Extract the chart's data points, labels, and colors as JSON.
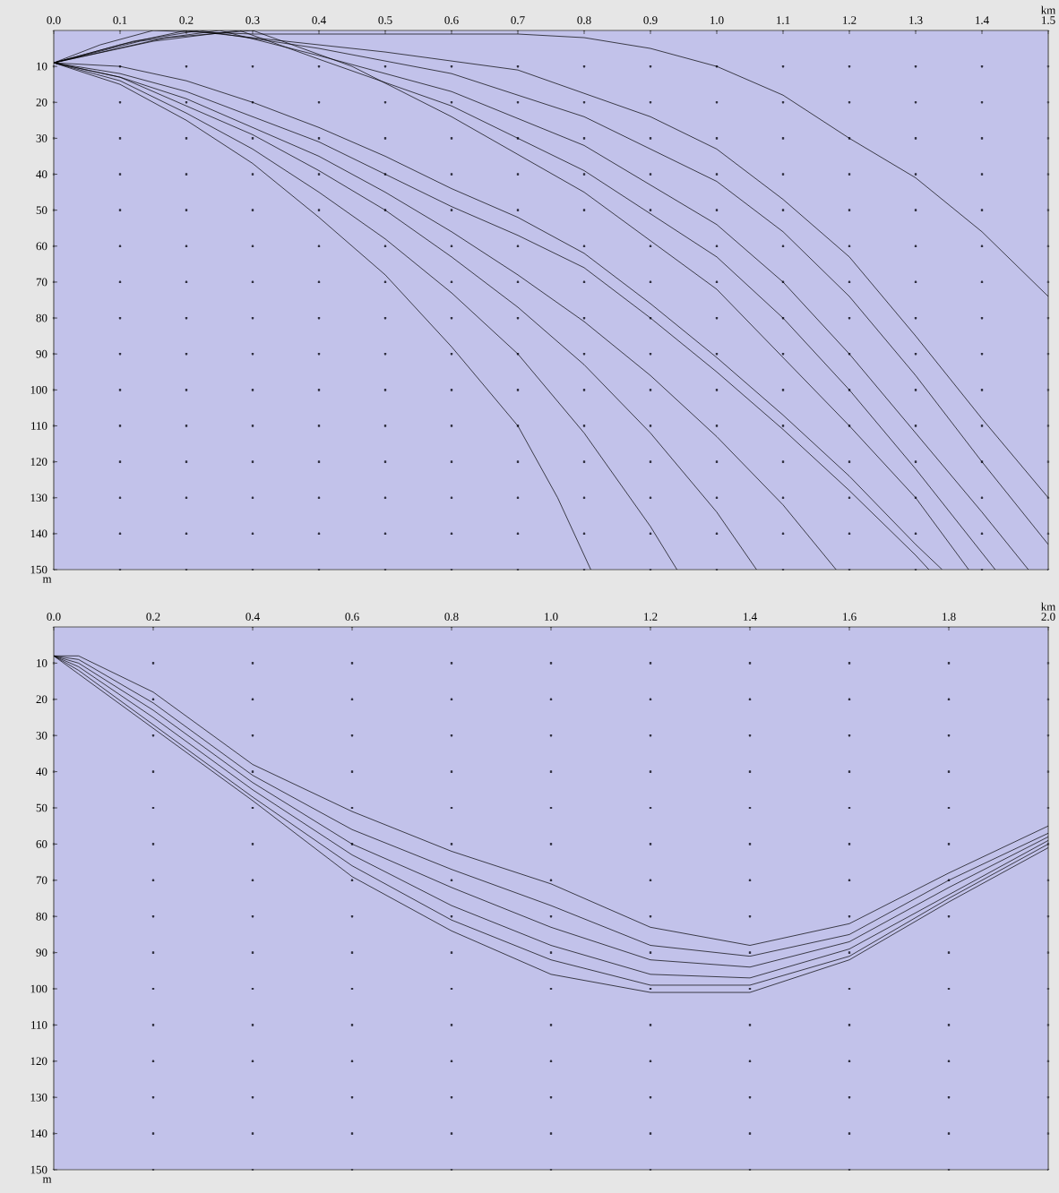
{
  "chart_data": [
    {
      "type": "line",
      "xlabel": "km",
      "ylabel": "m",
      "xlim": [
        0,
        1.5
      ],
      "ylim": [
        150,
        0
      ],
      "xticks": [
        {
          "value": 0,
          "label": "0.0"
        },
        0.1,
        0.2,
        0.3,
        0.4,
        0.5,
        0.6,
        0.7,
        0.8,
        0.9,
        {
          "value": 1,
          "label": "1.0"
        },
        1.1,
        1.2,
        1.3,
        1.4,
        1.5
      ],
      "yticks": [
        10,
        20,
        30,
        40,
        50,
        60,
        70,
        80,
        90,
        100,
        110,
        120,
        130,
        140,
        150
      ],
      "grid": true,
      "series": [
        {
          "color": "#000000",
          "x": [
            0,
            0.07,
            0.15,
            0.3,
            0.5,
            0.7,
            0.8,
            0.9,
            1.0,
            1.1,
            1.2,
            1.3,
            1.4,
            1.5
          ],
          "values": [
            9,
            4,
            0,
            1,
            1,
            1,
            2,
            5,
            10,
            18,
            30,
            41,
            56,
            74
          ]
        },
        {
          "color": "#000000",
          "x": [
            0,
            0.1,
            0.2,
            0.3,
            0.5,
            0.7,
            0.9,
            1.0,
            1.1,
            1.2,
            1.3,
            1.4,
            1.5
          ],
          "values": [
            9,
            4,
            0,
            2,
            6,
            11,
            24,
            33,
            47,
            63,
            85,
            108,
            130
          ]
        },
        {
          "color": "#000000",
          "x": [
            0,
            0.12,
            0.22,
            0.4,
            0.6,
            0.8,
            1.0,
            1.1,
            1.2,
            1.3,
            1.4,
            1.5
          ],
          "values": [
            9,
            3,
            0,
            5,
            12,
            24,
            42,
            56,
            74,
            96,
            120,
            143
          ]
        },
        {
          "color": "#000000",
          "x": [
            0,
            0.13,
            0.25,
            0.4,
            0.6,
            0.8,
            1.0,
            1.1,
            1.2,
            1.3,
            1.4,
            1.47
          ],
          "values": [
            9,
            3,
            0,
            7,
            17,
            32,
            54,
            70,
            90,
            112,
            134,
            150
          ]
        },
        {
          "color": "#000000",
          "x": [
            0,
            0.15,
            0.28,
            0.4,
            0.6,
            0.8,
            1.0,
            1.1,
            1.2,
            1.3,
            1.42
          ],
          "values": [
            9,
            3,
            0,
            8,
            21,
            39,
            63,
            80,
            100,
            122,
            150
          ]
        },
        {
          "color": "#000000",
          "x": [
            0,
            0.17,
            0.3,
            0.45,
            0.6,
            0.8,
            1.0,
            1.2,
            1.3,
            1.38
          ],
          "values": [
            9,
            2,
            0,
            10,
            24,
            45,
            72,
            110,
            130,
            150
          ]
        },
        {
          "color": "#000000",
          "x": [
            0,
            0.1,
            0.2,
            0.3,
            0.4,
            0.5,
            0.6,
            0.7,
            0.76,
            0.81
          ],
          "values": [
            9,
            15,
            25,
            37,
            52,
            68,
            88,
            110,
            130,
            150
          ]
        },
        {
          "color": "#000000",
          "x": [
            0,
            0.1,
            0.2,
            0.3,
            0.4,
            0.5,
            0.6,
            0.7,
            0.8,
            0.9,
            0.94
          ],
          "values": [
            9,
            14,
            23,
            33,
            45,
            58,
            73,
            90,
            112,
            138,
            150
          ]
        },
        {
          "color": "#000000",
          "x": [
            0,
            0.1,
            0.2,
            0.3,
            0.4,
            0.5,
            0.6,
            0.7,
            0.8,
            0.9,
            1.0,
            1.06
          ],
          "values": [
            9,
            13,
            21,
            29,
            39,
            50,
            63,
            77,
            93,
            112,
            134,
            150
          ]
        },
        {
          "color": "#000000",
          "x": [
            0,
            0.1,
            0.2,
            0.3,
            0.4,
            0.5,
            0.6,
            0.7,
            0.8,
            0.9,
            1.0,
            1.1,
            1.18
          ],
          "values": [
            9,
            13,
            19,
            27,
            35,
            45,
            56,
            68,
            81,
            96,
            113,
            132,
            150
          ]
        },
        {
          "color": "#000000",
          "x": [
            0,
            0.1,
            0.2,
            0.3,
            0.4,
            0.5,
            0.6,
            0.7,
            0.8,
            0.9,
            1.0,
            1.1,
            1.2,
            1.3,
            1.32
          ],
          "values": [
            9,
            12,
            17,
            24,
            31,
            40,
            49,
            57,
            66,
            80,
            95,
            111,
            128,
            146,
            150
          ]
        },
        {
          "color": "#000000",
          "x": [
            0,
            0.1,
            0.2,
            0.3,
            0.4,
            0.5,
            0.6,
            0.7,
            0.8,
            0.9,
            1.0,
            1.1,
            1.2,
            1.3,
            1.34
          ],
          "values": [
            9,
            10,
            14,
            20,
            27,
            35,
            44,
            52,
            62,
            76,
            91,
            107,
            124,
            143,
            150
          ]
        }
      ]
    },
    {
      "type": "line",
      "xlabel": "km",
      "ylabel": "m",
      "xlim": [
        0,
        2
      ],
      "ylim": [
        150,
        0
      ],
      "xticks": [
        {
          "value": 0,
          "label": "0.0"
        },
        0.2,
        0.4,
        0.6,
        0.8,
        {
          "value": 1,
          "label": "1.0"
        },
        1.2,
        1.4,
        1.6,
        1.8,
        {
          "value": 2,
          "label": "2.0"
        }
      ],
      "yticks": [
        10,
        20,
        30,
        40,
        50,
        60,
        70,
        80,
        90,
        100,
        110,
        120,
        130,
        140,
        150
      ],
      "grid": true,
      "series": [
        {
          "color": "#000000",
          "x": [
            0,
            0.05,
            0.2,
            0.4,
            0.6,
            0.8,
            1.0,
            1.2,
            1.4,
            1.6,
            1.8,
            2.0
          ],
          "values": [
            8,
            8,
            18,
            38,
            51,
            62,
            71,
            83,
            88,
            82,
            68,
            55
          ]
        },
        {
          "color": "#000000",
          "x": [
            0,
            0.05,
            0.2,
            0.4,
            0.6,
            0.8,
            1.0,
            1.2,
            1.4,
            1.6,
            1.8,
            2.0
          ],
          "values": [
            8,
            9,
            21,
            41,
            56,
            67,
            77,
            88,
            91,
            85,
            70,
            57
          ]
        },
        {
          "color": "#000000",
          "x": [
            0,
            0.05,
            0.2,
            0.4,
            0.6,
            0.8,
            1.0,
            1.2,
            1.4,
            1.6,
            1.8,
            2.0
          ],
          "values": [
            8,
            10,
            23,
            43,
            60,
            72,
            83,
            92,
            94,
            87,
            72,
            58
          ]
        },
        {
          "color": "#000000",
          "x": [
            0,
            0.05,
            0.2,
            0.4,
            0.6,
            0.8,
            1.0,
            1.2,
            1.4,
            1.6,
            1.8,
            2.0
          ],
          "values": [
            8,
            11,
            25,
            45,
            63,
            77,
            88,
            96,
            97,
            89,
            74,
            59
          ]
        },
        {
          "color": "#000000",
          "x": [
            0,
            0.05,
            0.2,
            0.4,
            0.6,
            0.8,
            1.0,
            1.2,
            1.4,
            1.6,
            1.8,
            2.0
          ],
          "values": [
            8,
            12,
            27,
            47,
            66,
            81,
            92,
            99,
            99,
            91,
            75,
            60
          ]
        },
        {
          "color": "#000000",
          "x": [
            0,
            0.05,
            0.2,
            0.4,
            0.6,
            0.8,
            1.0,
            1.2,
            1.4,
            1.6,
            1.8,
            2.0
          ],
          "values": [
            8,
            13,
            28,
            48,
            69,
            84,
            96,
            101,
            101,
            92,
            76,
            61
          ]
        }
      ]
    }
  ]
}
